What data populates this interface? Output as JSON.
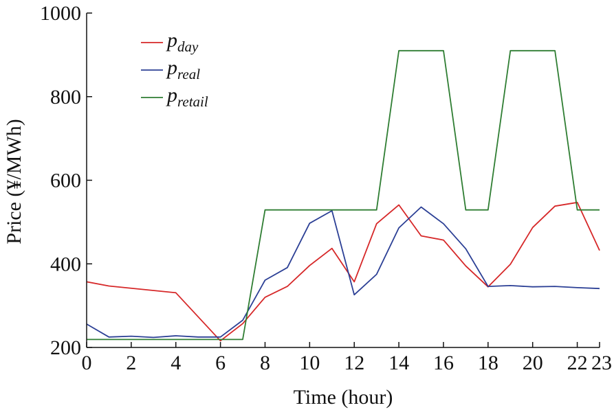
{
  "chart_data": {
    "type": "line",
    "xlabel": "Time (hour)",
    "ylabel": "Price (¥/MWh)",
    "xlim": [
      0,
      23
    ],
    "ylim": [
      200,
      1000
    ],
    "xticks": [
      0,
      2,
      4,
      6,
      8,
      10,
      12,
      14,
      16,
      18,
      20,
      22,
      23
    ],
    "yticks": [
      200,
      400,
      600,
      800,
      1000
    ],
    "grid": false,
    "legend_position": "top-left",
    "series": [
      {
        "legend_base": "p",
        "legend_sub": "day",
        "color": "#d62728",
        "x": [
          0,
          1,
          4,
          6,
          7,
          8,
          9,
          10,
          11,
          12,
          13,
          14,
          15,
          16,
          17,
          18,
          19,
          20,
          21,
          22,
          23
        ],
        "y": [
          357,
          347,
          331,
          216,
          257,
          320,
          346,
          396,
          437,
          357,
          496,
          541,
          467,
          457,
          395,
          345,
          399,
          487,
          538,
          547,
          432
        ]
      },
      {
        "legend_base": "p",
        "legend_sub": "real",
        "color": "#2b3f95",
        "x": [
          0,
          1,
          2,
          3,
          4,
          5,
          6,
          7,
          8,
          9,
          10,
          11,
          12,
          13,
          14,
          15,
          16,
          17,
          18,
          19,
          20,
          21,
          22,
          23
        ],
        "y": [
          256,
          225,
          227,
          224,
          228,
          225,
          225,
          265,
          361,
          391,
          497,
          527,
          326,
          375,
          486,
          536,
          496,
          436,
          346,
          348,
          345,
          346,
          343,
          341
        ]
      },
      {
        "legend_base": "p",
        "legend_sub": "retail",
        "color": "#2e7d32",
        "x": [
          0,
          7,
          8,
          13,
          14,
          16,
          17,
          18,
          19,
          21,
          22,
          23
        ],
        "y": [
          219,
          219,
          529,
          529,
          910,
          910,
          529,
          529,
          910,
          910,
          529,
          529
        ]
      }
    ]
  }
}
